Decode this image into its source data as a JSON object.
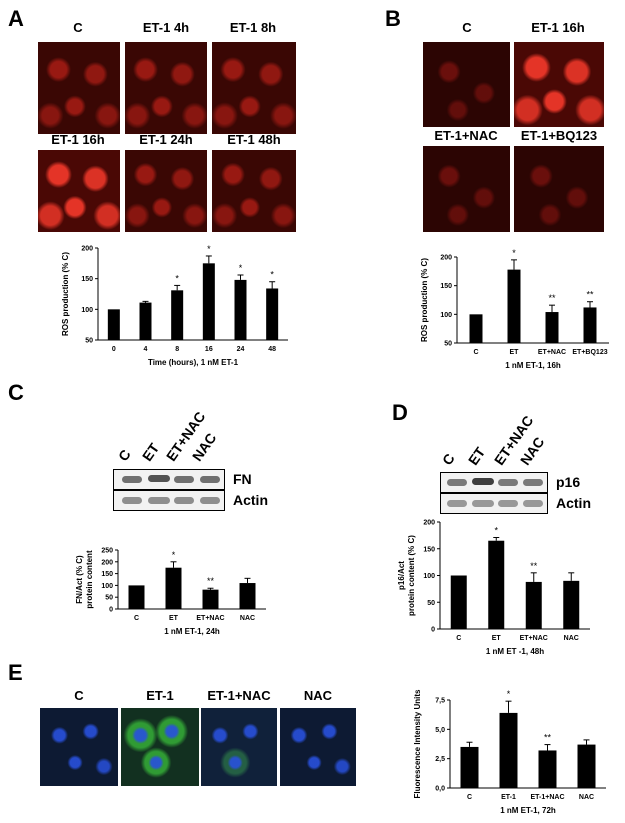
{
  "panels": {
    "A": {
      "letter": "A",
      "image_labels": [
        "C",
        "ET-1 4h",
        "ET-1 8h",
        "ET-1 16h",
        "ET-1 24h",
        "ET-1 48h"
      ]
    },
    "B": {
      "letter": "B",
      "image_labels": [
        "C",
        "ET-1 16h",
        "ET-1+NAC",
        "ET-1+BQ123"
      ]
    },
    "C": {
      "letter": "C",
      "lane_labels": [
        "C",
        "ET",
        "ET+NAC",
        "NAC"
      ],
      "blot_labels": [
        "FN",
        "Actin"
      ]
    },
    "D": {
      "letter": "D",
      "lane_labels": [
        "C",
        "ET",
        "ET+NAC",
        "NAC"
      ],
      "blot_labels": [
        "p16",
        "Actin"
      ]
    },
    "E": {
      "letter": "E",
      "image_labels": [
        "C",
        "ET-1",
        "ET-1+NAC",
        "NAC"
      ]
    }
  },
  "colors": {
    "bar": "#000000",
    "micrograph_red": "#e62a1e",
    "nuclei_blue": "#2850dc",
    "fn_green": "#3cc83c"
  },
  "chart_data": [
    {
      "id": "A",
      "type": "bar",
      "categories": [
        "0",
        "4",
        "8",
        "16",
        "24",
        "48"
      ],
      "values": [
        100,
        111,
        131,
        175,
        148,
        134
      ],
      "errors": [
        0,
        2,
        8,
        12,
        8,
        11
      ],
      "significance": [
        "",
        "",
        "*",
        "*",
        "*",
        "*"
      ],
      "xlabel": "Time (hours), 1 nM ET-1",
      "ylabel": "ROS production (% C)",
      "ylim": [
        50,
        200
      ],
      "yticks": [
        50,
        100,
        150,
        200
      ],
      "ytick_labels": [
        "50",
        "100",
        "150",
        "200"
      ]
    },
    {
      "id": "B",
      "type": "bar",
      "categories": [
        "C",
        "ET",
        "ET+NAC",
        "ET+BQ123"
      ],
      "values": [
        100,
        178,
        104,
        112
      ],
      "errors": [
        0,
        17,
        12,
        10
      ],
      "significance": [
        "",
        "*",
        "**",
        "**"
      ],
      "xlabel": "1 nM ET-1, 16h",
      "ylabel": "ROS production (% C)",
      "ylim": [
        50,
        200
      ],
      "yticks": [
        50,
        100,
        150,
        200
      ],
      "ytick_labels": [
        "50",
        "100",
        "150",
        "200"
      ]
    },
    {
      "id": "C",
      "type": "bar",
      "categories": [
        "C",
        "ET",
        "ET+NAC",
        "NAC"
      ],
      "values": [
        100,
        175,
        82,
        110
      ],
      "errors": [
        0,
        25,
        6,
        20
      ],
      "significance": [
        "",
        "*",
        "**",
        ""
      ],
      "xlabel": "1 nM ET-1, 24h",
      "ylabel": "FN/Act (% C) protein content",
      "ylabel_lines": [
        "FN/Act (% C)",
        "protein content"
      ],
      "ylim": [
        0,
        250
      ],
      "yticks": [
        0,
        50,
        100,
        150,
        200,
        250
      ],
      "ytick_labels": [
        "0",
        "50",
        "100",
        "150",
        "200",
        "250"
      ]
    },
    {
      "id": "D",
      "type": "bar",
      "categories": [
        "C",
        "ET",
        "ET+NAC",
        "NAC"
      ],
      "values": [
        100,
        165,
        88,
        90
      ],
      "errors": [
        0,
        6,
        17,
        15
      ],
      "significance": [
        "",
        "*",
        "**",
        ""
      ],
      "xlabel": "1 nM ET -1, 48h",
      "ylabel": "p16/Act protein content (% C)",
      "ylabel_lines": [
        "p16/Act",
        "protein content (% C)"
      ],
      "ylim": [
        0,
        200
      ],
      "yticks": [
        0,
        50,
        100,
        150,
        200
      ],
      "ytick_labels": [
        "0",
        "50",
        "100",
        "150",
        "200"
      ]
    },
    {
      "id": "E",
      "type": "bar",
      "categories": [
        "C",
        "ET-1",
        "ET-1+NAC",
        "NAC"
      ],
      "values": [
        3.5,
        6.4,
        3.2,
        3.7
      ],
      "errors": [
        0.4,
        1.0,
        0.5,
        0.4
      ],
      "significance": [
        "",
        "*",
        "**",
        ""
      ],
      "xlabel": "1 nM ET-1, 72h",
      "ylabel": "Fluorescence Intensity Units",
      "ylim": [
        0,
        7.5
      ],
      "yticks": [
        0,
        2.5,
        5,
        7.5
      ],
      "ytick_labels": [
        "0,0",
        "2,5",
        "5,0",
        "7,5"
      ]
    }
  ]
}
